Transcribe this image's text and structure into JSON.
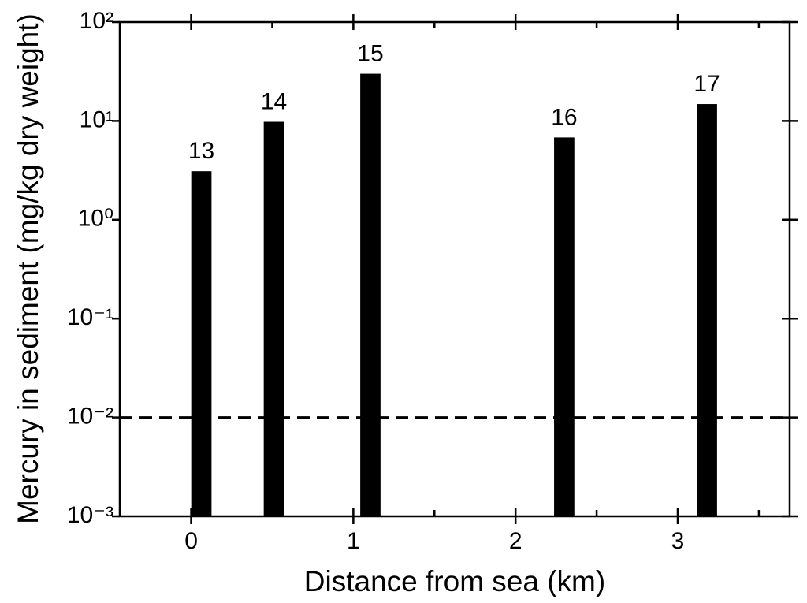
{
  "chart_data": {
    "type": "bar",
    "xlabel": "Distance from sea (km)",
    "ylabel": "Mercury in sediment (mg/kg dry weight)",
    "x": [
      0.063,
      0.51,
      1.105,
      2.3,
      3.18
    ],
    "values": [
      3.1,
      9.8,
      30,
      6.8,
      14.8
    ],
    "labels": [
      "13",
      "14",
      "15",
      "16",
      "17"
    ],
    "bar_width": 0.125,
    "color": "#000000",
    "xlim": [
      -0.44,
      3.69
    ],
    "xticks": [
      0,
      1,
      2,
      3
    ],
    "xminorticks": [
      0.5,
      1.5,
      2.5,
      3.5
    ],
    "ylim": [
      0.001,
      100
    ],
    "yscale": "log",
    "yticks": [
      {
        "value": 0.001,
        "label": "10⁻³"
      },
      {
        "value": 0.01,
        "label": "10⁻²"
      },
      {
        "value": 0.1,
        "label": "10⁻¹"
      },
      {
        "value": 1,
        "label": "10⁰"
      },
      {
        "value": 10,
        "label": "10¹"
      },
      {
        "value": 100,
        "label": "10²"
      }
    ],
    "reference_line": 0.01
  }
}
